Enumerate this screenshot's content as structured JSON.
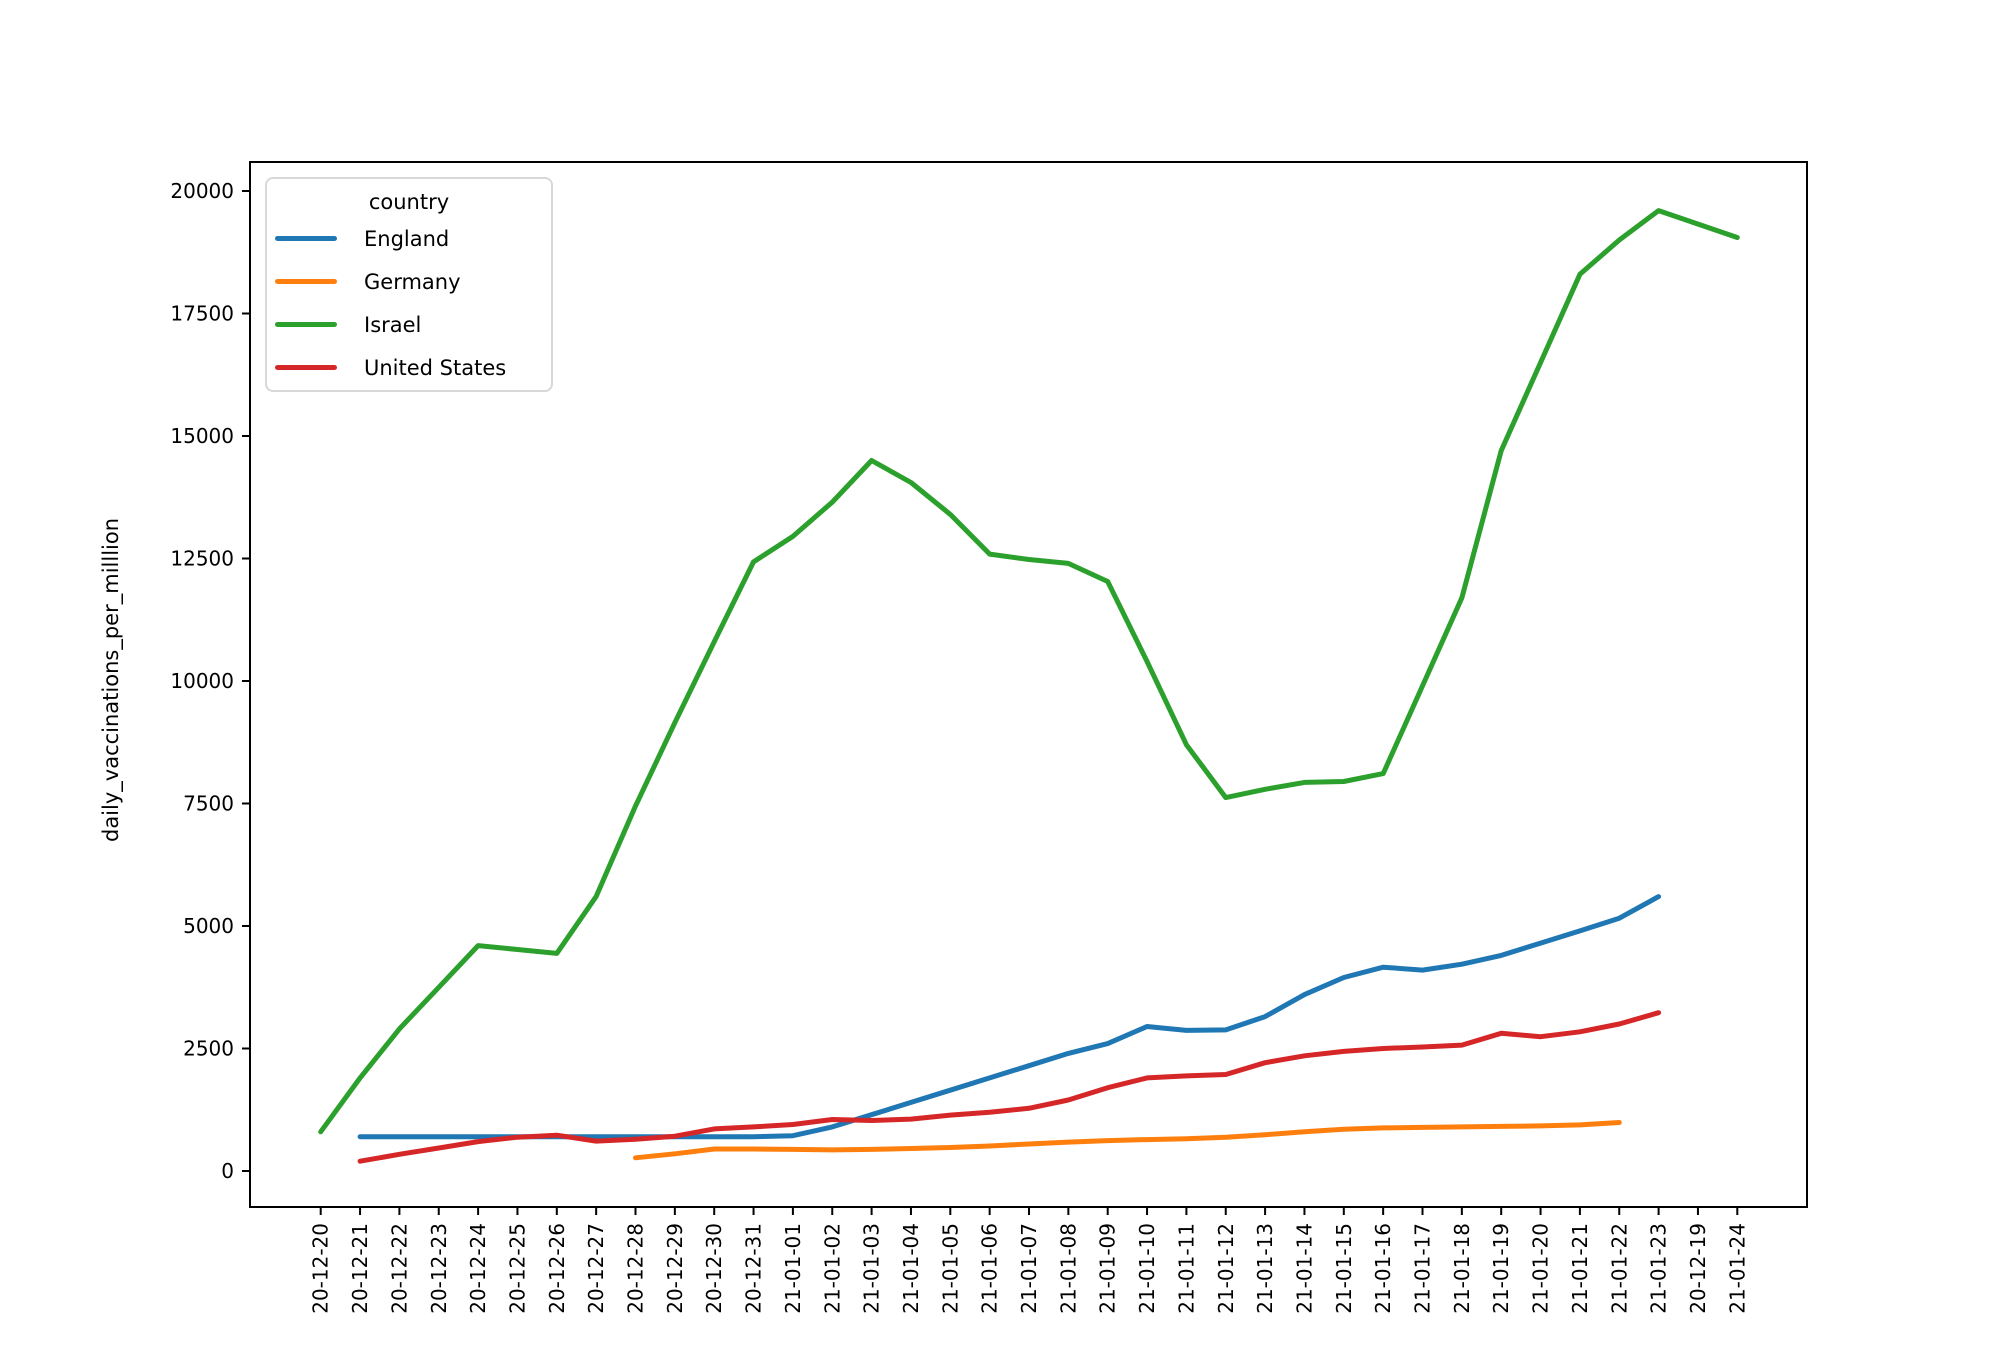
{
  "figure": {
    "ylabel": "daily_vaccinations_per_milllion",
    "legend": {
      "title": "country",
      "entries": [
        {
          "label": "England",
          "color": "#1f77b4"
        },
        {
          "label": "Germany",
          "color": "#ff7f0e"
        },
        {
          "label": "Israel",
          "color": "#2ca02c"
        },
        {
          "label": "United States",
          "color": "#d62728"
        }
      ]
    }
  },
  "chart_data": {
    "type": "line",
    "title": "",
    "xlabel": "",
    "ylabel": "daily_vaccinations_per_milllion",
    "grid": false,
    "legend_position": "upper-left",
    "yticks": [
      0,
      2500,
      5000,
      7500,
      10000,
      12500,
      15000,
      17500,
      20000
    ],
    "ylim": [
      -735,
      20590
    ],
    "x_categories": [
      "20-12-20",
      "20-12-21",
      "20-12-22",
      "20-12-23",
      "20-12-24",
      "20-12-25",
      "20-12-26",
      "20-12-27",
      "20-12-28",
      "20-12-29",
      "20-12-30",
      "20-12-31",
      "21-01-01",
      "21-01-02",
      "21-01-03",
      "21-01-04",
      "21-01-05",
      "21-01-06",
      "21-01-07",
      "21-01-08",
      "21-01-09",
      "21-01-10",
      "21-01-11",
      "21-01-12",
      "21-01-13",
      "21-01-14",
      "21-01-15",
      "21-01-16",
      "21-01-17",
      "21-01-18",
      "21-01-19",
      "21-01-20",
      "21-01-21",
      "21-01-22",
      "21-01-23",
      "20-12-19",
      "21-01-24"
    ],
    "series": [
      {
        "name": "England",
        "color": "#1f77b4",
        "values": [
          null,
          700,
          700,
          700,
          700,
          700,
          700,
          700,
          700,
          700,
          700,
          700,
          720,
          900,
          1150,
          1400,
          1650,
          1900,
          2150,
          2400,
          2600,
          2950,
          2870,
          2880,
          3150,
          3600,
          3950,
          4160,
          4100,
          4220,
          4400,
          4650,
          4900,
          5160,
          5600,
          null,
          null
        ]
      },
      {
        "name": "Germany",
        "color": "#ff7f0e",
        "values": [
          null,
          null,
          null,
          null,
          null,
          null,
          null,
          null,
          270,
          350,
          450,
          450,
          440,
          430,
          440,
          460,
          480,
          510,
          550,
          590,
          620,
          640,
          660,
          690,
          740,
          800,
          850,
          880,
          890,
          900,
          910,
          920,
          940,
          990,
          null,
          null,
          null
        ]
      },
      {
        "name": "Israel",
        "color": "#2ca02c",
        "values": [
          800,
          1900,
          2900,
          3750,
          4600,
          4520,
          4440,
          5600,
          7450,
          9150,
          10800,
          12430,
          12950,
          13650,
          14500,
          14050,
          13400,
          12590,
          12480,
          12400,
          12030,
          10400,
          8700,
          7620,
          7790,
          7930,
          7950,
          8110,
          9900,
          11700,
          14700,
          16500,
          18300,
          19000,
          19600,
          null,
          19050
        ]
      },
      {
        "name": "United States",
        "color": "#d62728",
        "values": [
          null,
          200,
          340,
          470,
          600,
          690,
          730,
          610,
          650,
          710,
          860,
          900,
          950,
          1050,
          1030,
          1060,
          1140,
          1200,
          1280,
          1450,
          1700,
          1900,
          1940,
          1970,
          2210,
          2350,
          2440,
          2500,
          2530,
          2570,
          2810,
          2740,
          2840,
          3000,
          3230,
          null,
          null
        ]
      }
    ]
  }
}
